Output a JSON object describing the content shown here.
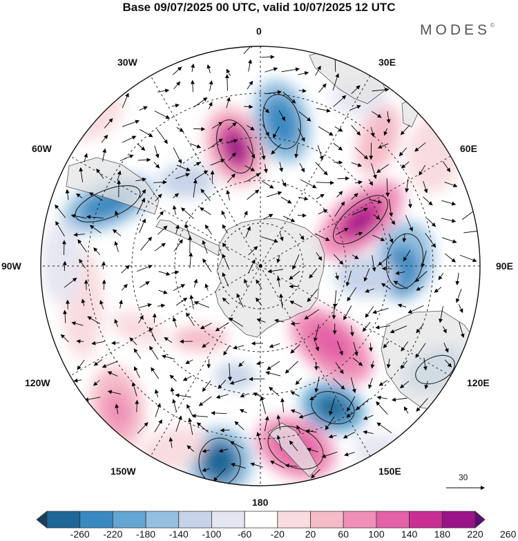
{
  "title": "Base 09/07/2025 00 UTC, valid 10/07/2025 12 UTC",
  "brand": {
    "name": "MODES",
    "mark": "©"
  },
  "longitude_labels": {
    "lon_0": "0",
    "lon_30e": "30E",
    "lon_60e": "60E",
    "lon_90e": "90E",
    "lon_120e": "120E",
    "lon_150e": "150E",
    "lon_180": "180",
    "lon_150w": "150W",
    "lon_120w": "120W",
    "lon_90w": "90W",
    "lon_60w": "60W",
    "lon_30w": "30W"
  },
  "reference_vector": {
    "label": "30"
  },
  "colorbar": {
    "colors": [
      "#16405f",
      "#1f6797",
      "#3a8ac1",
      "#64a6d2",
      "#94bfe0",
      "#c6d3e8",
      "#e6e6f2",
      "#ffffff",
      "#f9dcdf",
      "#f5bcc8",
      "#ef90b7",
      "#e361a6",
      "#c92e93",
      "#9a1487",
      "#5d0c74"
    ],
    "ticks": [
      "-260",
      "-220",
      "-180",
      "-140",
      "-100",
      "-60",
      "-20",
      "20",
      "60",
      "100",
      "140",
      "180",
      "220",
      "260"
    ]
  },
  "map_style": {
    "land_color": "#ebebeb",
    "coastline_color": "#555555",
    "grid_color": "#222222",
    "vector_color": "#000000"
  }
}
